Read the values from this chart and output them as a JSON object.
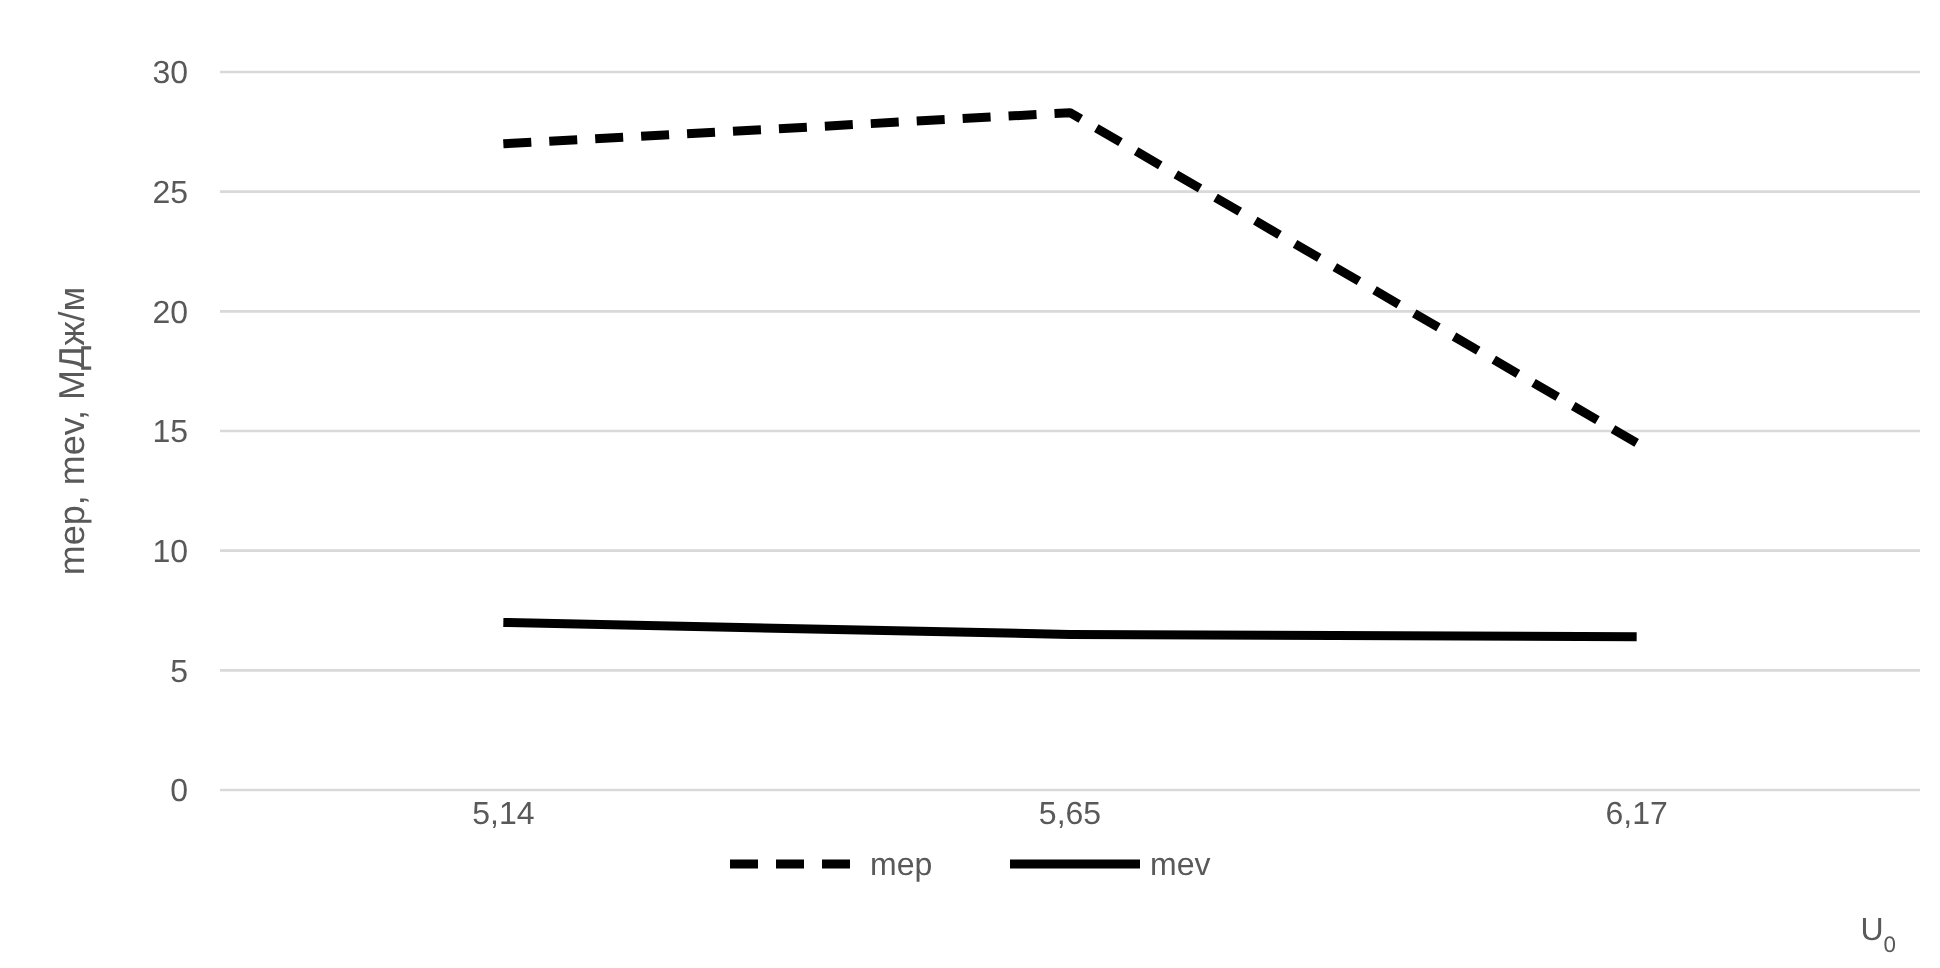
{
  "chart_data": {
    "type": "line",
    "xlabel": "U$_{0}$",
    "ylabel": "mep, mev, МДж/м",
    "categories": [
      "5,14",
      "5,65",
      "6,17"
    ],
    "series": [
      {
        "name": "mep",
        "color": "#000000",
        "values": [
          27.0,
          28.3,
          14.5
        ],
        "line_style": "dashed"
      },
      {
        "name": "mev",
        "color": "#000000",
        "values": [
          7.0,
          6.5,
          6.4
        ],
        "line_style": "solid"
      }
    ],
    "ylim": [
      0,
      30
    ],
    "yticks": [
      0,
      5,
      10,
      15,
      20,
      25,
      30
    ],
    "grid": "y",
    "legend": "bottom",
    "marker": "none"
  }
}
